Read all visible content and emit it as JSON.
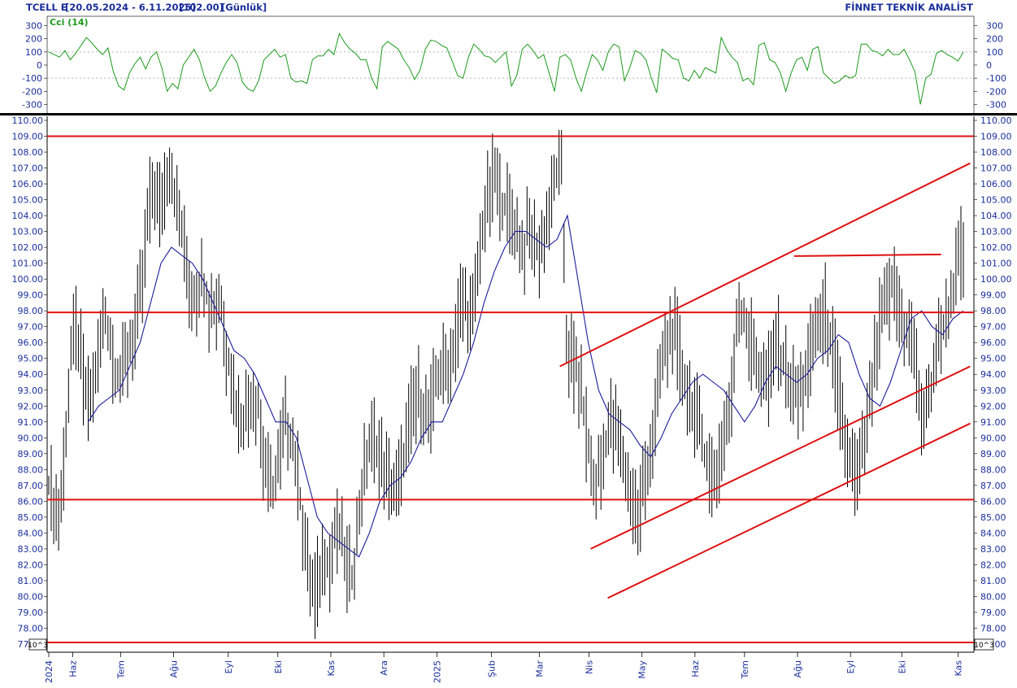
{
  "header": {
    "symbol": "TCELL E",
    "date_range": "[20.05.2024 - 6.11.2025]",
    "last_price": "[102.00]",
    "period": "[Günlük]",
    "brand": "FİNNET TEKNİK ANALİST"
  },
  "scale_badge": "10^3",
  "colors": {
    "header_text": "#1a2f9c",
    "cci_line": "#1d9a1d",
    "price_bars": "#000000",
    "moving_average": "#1c1c9c",
    "trend_lines": "#e01010",
    "axis_text": "#1a2f9c"
  },
  "chart_data": [
    {
      "type": "line",
      "title": "Cci (14)",
      "ylim": [
        -350,
        350
      ],
      "y_ticks": [
        300,
        200,
        100,
        0,
        -100,
        -200,
        -300
      ],
      "reference_lines": [
        100,
        -100
      ],
      "series": [
        {
          "name": "Cci (14)",
          "x_range": [
            "2024-05-20",
            "2025-11-06"
          ],
          "values": [
            100,
            80,
            60,
            110,
            40,
            90,
            150,
            210,
            170,
            120,
            80,
            130,
            -50,
            -160,
            -190,
            -60,
            10,
            60,
            -30,
            60,
            100,
            -20,
            -200,
            -140,
            -180,
            0,
            60,
            120,
            40,
            -100,
            -200,
            -160,
            -60,
            20,
            80,
            20,
            -130,
            -180,
            -200,
            -120,
            40,
            80,
            120,
            60,
            80,
            -100,
            -130,
            -120,
            -140,
            40,
            70,
            70,
            120,
            80,
            240,
            170,
            120,
            90,
            40,
            40,
            -100,
            -180,
            140,
            180,
            150,
            120,
            40,
            -20,
            -110,
            -40,
            120,
            190,
            180,
            150,
            130,
            30,
            -80,
            -100,
            60,
            160,
            120,
            70,
            60,
            20,
            60,
            100,
            -160,
            -80,
            120,
            160,
            110,
            50,
            80,
            -60,
            -200,
            60,
            80,
            40,
            -100,
            -200,
            -50,
            80,
            40,
            -40,
            100,
            160,
            140,
            -120,
            -20,
            110,
            90,
            40,
            -100,
            -210,
            120,
            90,
            50,
            40,
            -100,
            -120,
            -40,
            -100,
            -20,
            -40,
            -60,
            210,
            120,
            60,
            20,
            -120,
            -100,
            -150,
            150,
            170,
            40,
            20,
            -60,
            -200,
            -60,
            40,
            60,
            -40,
            120,
            140,
            -60,
            -100,
            -140,
            -120,
            -80,
            -100,
            -80,
            160,
            160,
            110,
            100,
            70,
            120,
            80,
            80,
            120,
            40,
            -50,
            -300,
            -100,
            -70,
            90,
            110,
            80,
            60,
            30,
            100
          ]
        }
      ]
    },
    {
      "type": "bar",
      "subtype": "ohlc",
      "ylabel": "",
      "ylim": [
        77,
        110
      ],
      "y_ticks": [
        77,
        78,
        79,
        80,
        81,
        82,
        83,
        84,
        85,
        86,
        87,
        88,
        89,
        90,
        91,
        92,
        93,
        94,
        95,
        96,
        97,
        98,
        99,
        100,
        101,
        102,
        103,
        104,
        105,
        106,
        107,
        108,
        109,
        110
      ],
      "x_tick_labels": [
        {
          "label": "2024",
          "date": "2024-05-20"
        },
        {
          "label": "Haz",
          "date": "2024-06-03"
        },
        {
          "label": "Tem",
          "date": "2024-07-01"
        },
        {
          "label": "Ağu",
          "date": "2024-08-01"
        },
        {
          "label": "Eyl",
          "date": "2024-09-02"
        },
        {
          "label": "Eki",
          "date": "2024-10-01"
        },
        {
          "label": "Kas",
          "date": "2024-11-01"
        },
        {
          "label": "Ara",
          "date": "2024-12-02"
        },
        {
          "label": "2025",
          "date": "2025-01-02"
        },
        {
          "label": "Şub",
          "date": "2025-02-03"
        },
        {
          "label": "Mar",
          "date": "2025-03-03"
        },
        {
          "label": "Nis",
          "date": "2025-04-01"
        },
        {
          "label": "May",
          "date": "2025-05-02"
        },
        {
          "label": "Haz",
          "date": "2025-06-02"
        },
        {
          "label": "Tem",
          "date": "2025-07-01"
        },
        {
          "label": "Ağu",
          "date": "2025-08-01"
        },
        {
          "label": "Eyl",
          "date": "2025-09-01"
        },
        {
          "label": "Eki",
          "date": "2025-10-01"
        },
        {
          "label": "Kas",
          "date": "2025-11-03"
        }
      ],
      "close_path": {
        "x_range": [
          "2024-05-20",
          "2025-11-06"
        ],
        "values": [
          87.0,
          86.0,
          85.0,
          90.0,
          95.0,
          97.0,
          94.5,
          92.0,
          93.0,
          95.0,
          97.5,
          96.5,
          94.5,
          93.5,
          95.0,
          96.0,
          97.5,
          100.0,
          104.0,
          106.0,
          104.5,
          106.0,
          107.5,
          105.0,
          103.0,
          101.0,
          99.0,
          99.5,
          100.0,
          98.5,
          98.0,
          99.0,
          96.0,
          94.5,
          92.0,
          91.0,
          92.0,
          93.0,
          92.0,
          89.0,
          87.0,
          86.5,
          89.0,
          91.0,
          90.0,
          88.0,
          85.0,
          82.0,
          80.0,
          81.0,
          83.0,
          82.0,
          84.0,
          83.5,
          82.0,
          81.0,
          84.0,
          87.5,
          89.0,
          90.0,
          89.0,
          88.0,
          87.0,
          86.5,
          88.0,
          90.0,
          92.0,
          93.0,
          92.0,
          91.0,
          93.0,
          94.0,
          94.5,
          95.0,
          97.0,
          99.0,
          98.0,
          97.5,
          101.0,
          104.0,
          105.5,
          106.5,
          105.0,
          104.5,
          104.0,
          103.0,
          101.5,
          103.0,
          102.5,
          101.5,
          103.0,
          104.5,
          106.0,
          108.0,
          96.0,
          95.0,
          94.0,
          92.0,
          89.0,
          86.5,
          88.0,
          89.5,
          91.0,
          90.5,
          89.0,
          87.0,
          86.5,
          85.0,
          87.5,
          89.0,
          91.0,
          94.0,
          95.5,
          97.0,
          96.0,
          94.0,
          93.0,
          92.0,
          90.5,
          89.0,
          88.0,
          87.5,
          89.5,
          91.0,
          92.5,
          98.5,
          97.5,
          96.5,
          95.5,
          94.0,
          93.5,
          94.0,
          96.5,
          95.0,
          94.0,
          93.0,
          92.5,
          93.5,
          95.0,
          96.5,
          97.5,
          98.0,
          96.0,
          94.0,
          91.0,
          89.0,
          88.0,
          87.5,
          89.5,
          92.0,
          95.0,
          97.5,
          98.0,
          99.5,
          99.0,
          97.0,
          96.5,
          96.0,
          92.5,
          91.0,
          92.5,
          95.5,
          96.5,
          97.5,
          99.0,
          101.0,
          102.0
        ]
      },
      "moving_average_path": {
        "x_range": [
          "2024-06-12",
          "2025-11-06"
        ],
        "values": [
          91.0,
          92.0,
          92.5,
          93.0,
          94.5,
          96.0,
          98.5,
          101.0,
          102.0,
          101.5,
          101.0,
          100.0,
          98.5,
          97.0,
          95.5,
          95.0,
          94.0,
          92.5,
          91.0,
          91.0,
          90.0,
          87.5,
          85.0,
          84.0,
          83.5,
          83.0,
          82.5,
          84.0,
          86.0,
          87.0,
          87.5,
          88.5,
          90.0,
          91.0,
          91.0,
          92.5,
          94.0,
          96.0,
          98.5,
          100.5,
          102.0,
          103.0,
          103.0,
          102.5,
          102.0,
          102.5,
          104.0,
          100.0,
          96.0,
          93.0,
          91.5,
          91.0,
          90.5,
          89.5,
          88.8,
          90.0,
          91.5,
          92.5,
          93.5,
          94.0,
          93.5,
          93.0,
          92.0,
          91.0,
          92.0,
          93.5,
          94.5,
          94.0,
          93.5,
          94.0,
          95.0,
          95.5,
          96.5,
          96.0,
          94.0,
          92.5,
          92.0,
          93.5,
          95.5,
          97.5,
          98.0,
          97.0,
          96.5,
          97.5,
          98.0
        ]
      },
      "horizontal_levels": [
        109.0,
        97.9,
        86.1,
        77.1
      ],
      "trend_lines": [
        {
          "from": [
            "2025-03-15",
            94.5
          ],
          "to": [
            "2025-11-10",
            107.3
          ]
        },
        {
          "from": [
            "2025-04-02",
            83.0
          ],
          "to": [
            "2025-11-10",
            94.5
          ]
        },
        {
          "from": [
            "2025-04-12",
            79.9
          ],
          "to": [
            "2025-11-10",
            90.9
          ]
        },
        {
          "from": [
            "2025-07-30",
            101.45
          ],
          "to": [
            "2025-10-24",
            101.55
          ]
        }
      ]
    }
  ]
}
